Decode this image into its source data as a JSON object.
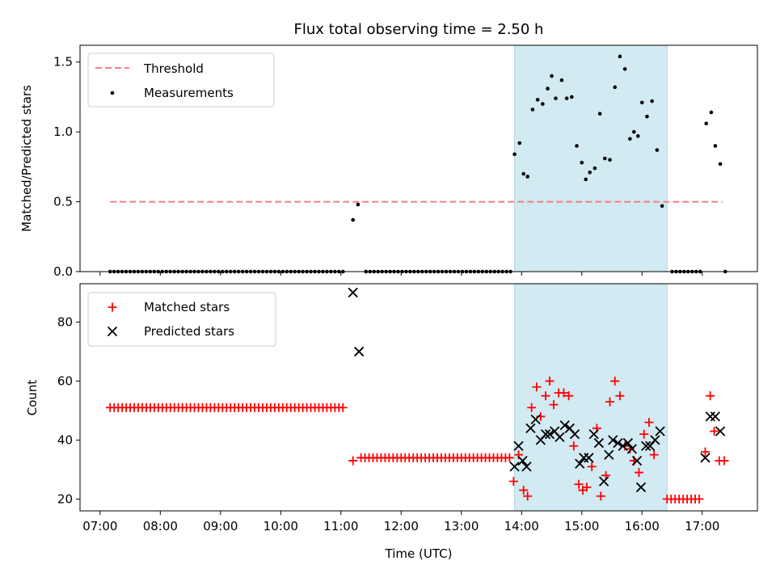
{
  "chart_data": {
    "title": "Flux total observing time = 2.50 h",
    "xlabel": "Time (UTC)",
    "x_ticks": [
      "07:00",
      "08:00",
      "09:00",
      "10:00",
      "11:00",
      "12:00",
      "13:00",
      "14:00",
      "15:00",
      "16:00",
      "17:00"
    ],
    "x_range": [
      "06:40",
      "17:55"
    ],
    "shaded_span": [
      "13:53",
      "16:25"
    ],
    "colors": {
      "threshold": "#f08080",
      "measurements": "#000000",
      "shade": "#add8e6",
      "matched": "#ff0000",
      "predicted": "#000000"
    },
    "panels": [
      {
        "type": "scatter",
        "ylabel": "Matched/Predicted stars",
        "ylim": [
          0,
          1.62
        ],
        "y_ticks": [
          "0.0",
          "0.5",
          "1.0",
          "1.5"
        ],
        "legend": {
          "location": "top-left",
          "entries": [
            "Threshold",
            "Measurements"
          ]
        },
        "threshold": {
          "value": 0.5,
          "x_start": "07:10",
          "x_end": "17:20"
        },
        "measurements": {
          "zero_segments": [
            [
              "07:10",
              "11:05"
            ],
            [
              "11:25",
              "13:50"
            ],
            [
              "16:30",
              "16:58"
            ]
          ],
          "zero_step_min": 4,
          "zero_points": [
            "17:23"
          ],
          "points": [
            [
              "11:12",
              0.37
            ],
            [
              "11:17",
              0.48
            ],
            [
              "13:53",
              0.84
            ],
            [
              "13:58",
              0.92
            ],
            [
              "14:02",
              0.7
            ],
            [
              "14:06",
              0.68
            ],
            [
              "14:11",
              1.16
            ],
            [
              "14:16",
              1.23
            ],
            [
              "14:21",
              1.2
            ],
            [
              "14:26",
              1.31
            ],
            [
              "14:30",
              1.4
            ],
            [
              "14:34",
              1.24
            ],
            [
              "14:40",
              1.37
            ],
            [
              "14:45",
              1.24
            ],
            [
              "14:50",
              1.25
            ],
            [
              "14:55",
              0.9
            ],
            [
              "15:00",
              0.78
            ],
            [
              "15:04",
              0.66
            ],
            [
              "15:08",
              0.71
            ],
            [
              "15:13",
              0.74
            ],
            [
              "15:18",
              1.13
            ],
            [
              "15:23",
              0.81
            ],
            [
              "15:28",
              0.8
            ],
            [
              "15:33",
              1.32
            ],
            [
              "15:38",
              1.54
            ],
            [
              "15:43",
              1.45
            ],
            [
              "15:48",
              0.95
            ],
            [
              "15:52",
              1.0
            ],
            [
              "15:56",
              0.97
            ],
            [
              "16:00",
              1.21
            ],
            [
              "16:05",
              1.11
            ],
            [
              "16:10",
              1.22
            ],
            [
              "16:15",
              0.87
            ],
            [
              "16:20",
              0.47
            ],
            [
              "17:04",
              1.06
            ],
            [
              "17:09",
              1.14
            ],
            [
              "17:13",
              0.9
            ],
            [
              "17:18",
              0.77
            ]
          ]
        }
      },
      {
        "type": "scatter",
        "ylabel": "Count",
        "ylim": [
          16,
          93
        ],
        "y_ticks": [
          "20",
          "40",
          "60",
          "80"
        ],
        "legend": {
          "location": "top-left",
          "entries": [
            "Matched stars",
            "Predicted stars"
          ]
        },
        "matched_segments": [
          {
            "from": "07:10",
            "to": "11:05",
            "value": 51,
            "step_min": 4
          },
          {
            "from": "11:20",
            "to": "13:50",
            "value": 34,
            "step_min": 4
          },
          {
            "from": "16:25",
            "to": "17:00",
            "value": 20,
            "step_min": 4
          }
        ],
        "matched_points": [
          [
            "11:12",
            33
          ],
          [
            "13:52",
            26
          ],
          [
            "13:57",
            35
          ],
          [
            "14:02",
            23
          ],
          [
            "14:06",
            21
          ],
          [
            "14:10",
            51
          ],
          [
            "14:15",
            58
          ],
          [
            "14:19",
            48
          ],
          [
            "14:24",
            55
          ],
          [
            "14:28",
            60
          ],
          [
            "14:32",
            52
          ],
          [
            "14:37",
            56
          ],
          [
            "14:42",
            56
          ],
          [
            "14:47",
            55
          ],
          [
            "14:52",
            38
          ],
          [
            "14:57",
            25
          ],
          [
            "15:01",
            23
          ],
          [
            "15:05",
            24
          ],
          [
            "15:10",
            31
          ],
          [
            "15:15",
            44
          ],
          [
            "15:19",
            21
          ],
          [
            "15:24",
            28
          ],
          [
            "15:28",
            53
          ],
          [
            "15:33",
            60
          ],
          [
            "15:38",
            55
          ],
          [
            "15:43",
            38
          ],
          [
            "15:48",
            37
          ],
          [
            "15:52",
            33
          ],
          [
            "15:57",
            29
          ],
          [
            "16:02",
            42
          ],
          [
            "16:07",
            46
          ],
          [
            "16:12",
            35
          ],
          [
            "17:03",
            36
          ],
          [
            "17:08",
            55
          ],
          [
            "17:12",
            43
          ],
          [
            "17:17",
            33
          ],
          [
            "17:22",
            33
          ]
        ],
        "predicted_points": [
          [
            "11:12",
            90
          ],
          [
            "11:18",
            70
          ],
          [
            "13:53",
            31
          ],
          [
            "13:57",
            38
          ],
          [
            "14:01",
            33
          ],
          [
            "14:05",
            31
          ],
          [
            "14:09",
            44
          ],
          [
            "14:14",
            47
          ],
          [
            "14:19",
            40
          ],
          [
            "14:24",
            42
          ],
          [
            "14:28",
            42
          ],
          [
            "14:33",
            43
          ],
          [
            "14:38",
            41
          ],
          [
            "14:43",
            45
          ],
          [
            "14:48",
            44
          ],
          [
            "14:53",
            42
          ],
          [
            "14:58",
            32
          ],
          [
            "15:02",
            34
          ],
          [
            "15:07",
            34
          ],
          [
            "15:12",
            42
          ],
          [
            "15:17",
            39
          ],
          [
            "15:22",
            26
          ],
          [
            "15:27",
            35
          ],
          [
            "15:31",
            40
          ],
          [
            "15:36",
            39
          ],
          [
            "15:41",
            38
          ],
          [
            "15:46",
            39
          ],
          [
            "15:50",
            37
          ],
          [
            "15:55",
            33
          ],
          [
            "15:59",
            24
          ],
          [
            "16:04",
            38
          ],
          [
            "16:08",
            38
          ],
          [
            "16:13",
            40
          ],
          [
            "16:18",
            43
          ],
          [
            "17:03",
            34
          ],
          [
            "17:08",
            48
          ],
          [
            "17:13",
            48
          ],
          [
            "17:18",
            43
          ]
        ]
      }
    ]
  }
}
